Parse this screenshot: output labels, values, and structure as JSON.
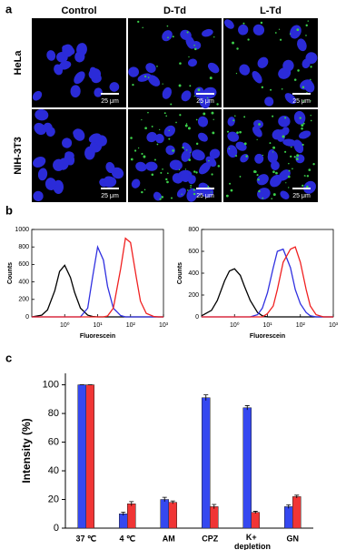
{
  "panel_labels": [
    "a",
    "b",
    "c"
  ],
  "panel_a": {
    "columns": [
      "Control",
      "D-Td",
      "L-Td"
    ],
    "rows": [
      "HeLa",
      "NIH-3T3"
    ],
    "scale_bar": "25 μm"
  },
  "chart_data": [
    {
      "type": "line",
      "xscale": "log",
      "y_label": "Counts",
      "x_label": "Fluorescein",
      "x": [
        0.1,
        0.2,
        0.3,
        0.5,
        0.7,
        1,
        1.5,
        2,
        3,
        5,
        7,
        10,
        15,
        20,
        30,
        50,
        70,
        100,
        150,
        200,
        300,
        500,
        700,
        1000
      ],
      "series": [
        {
          "color": "#000000",
          "values": [
            0,
            20,
            80,
            300,
            520,
            590,
            450,
            280,
            100,
            20,
            5,
            0,
            0,
            0,
            0,
            0,
            0,
            0,
            0,
            0,
            0,
            0,
            0,
            0
          ]
        },
        {
          "color": "#3030e0",
          "values": [
            0,
            0,
            0,
            0,
            0,
            0,
            0,
            0,
            0,
            100,
            450,
            800,
            650,
            350,
            100,
            15,
            0,
            0,
            0,
            0,
            0,
            0,
            0,
            0
          ]
        },
        {
          "color": "#f02020",
          "values": [
            0,
            0,
            0,
            0,
            0,
            0,
            0,
            0,
            0,
            0,
            0,
            0,
            0,
            10,
            100,
            550,
            900,
            850,
            450,
            180,
            40,
            5,
            0,
            0
          ]
        }
      ],
      "xlim": [
        0.1,
        1000
      ],
      "xticks": [
        {
          "value": 1,
          "label": "10⁰"
        },
        {
          "value": 10,
          "label": "10¹"
        },
        {
          "value": 100,
          "label": "10²"
        },
        {
          "value": 1000,
          "label": "10³"
        }
      ],
      "ylim": [
        0,
        1000
      ],
      "yticks": [
        0,
        200,
        400,
        600,
        800,
        1000
      ]
    },
    {
      "type": "line",
      "xscale": "log",
      "y_label": "Counts",
      "x_label": "Fluorescein",
      "x": [
        0.1,
        0.2,
        0.3,
        0.5,
        0.7,
        1,
        1.5,
        2,
        3,
        5,
        7,
        10,
        15,
        20,
        30,
        50,
        70,
        100,
        150,
        200,
        300,
        500,
        700,
        1000
      ],
      "series": [
        {
          "color": "#000000",
          "values": [
            10,
            60,
            150,
            330,
            420,
            440,
            380,
            280,
            150,
            40,
            10,
            0,
            0,
            0,
            0,
            0,
            0,
            0,
            0,
            0,
            0,
            0,
            0,
            0
          ]
        },
        {
          "color": "#3030e0",
          "values": [
            0,
            0,
            0,
            0,
            0,
            0,
            0,
            0,
            0,
            20,
            80,
            220,
            450,
            600,
            620,
            450,
            250,
            120,
            40,
            10,
            0,
            0,
            0,
            0
          ]
        },
        {
          "color": "#f02020",
          "values": [
            0,
            0,
            0,
            0,
            0,
            0,
            0,
            0,
            0,
            0,
            0,
            30,
            100,
            250,
            500,
            620,
            640,
            500,
            250,
            100,
            20,
            0,
            0,
            0
          ]
        }
      ],
      "xlim": [
        0.1,
        1000
      ],
      "xticks": [
        {
          "value": 1,
          "label": "10⁰"
        },
        {
          "value": 10,
          "label": "10¹"
        },
        {
          "value": 100,
          "label": "10²"
        },
        {
          "value": 1000,
          "label": "10³"
        }
      ],
      "ylim": [
        0,
        800
      ],
      "yticks": [
        0,
        200,
        400,
        600,
        800
      ]
    },
    {
      "type": "bar",
      "y_label": "Intensity (%)",
      "categories": [
        "37 ℃",
        "4 ℃",
        "AM",
        "CPZ",
        "K+ depletion",
        "GN"
      ],
      "series": [
        {
          "color": "#3548f0",
          "values": [
            100,
            10,
            20,
            91,
            84,
            15
          ],
          "errors": [
            0,
            1.2,
            1.5,
            2,
            1.5,
            1.3
          ]
        },
        {
          "color": "#f03535",
          "values": [
            100,
            17,
            18,
            15,
            11,
            22
          ],
          "errors": [
            0,
            1.5,
            1,
            1.5,
            0.8,
            1
          ]
        }
      ],
      "ylim": [
        0,
        108
      ],
      "yticks": [
        0,
        20,
        40,
        60,
        80,
        100
      ]
    }
  ]
}
